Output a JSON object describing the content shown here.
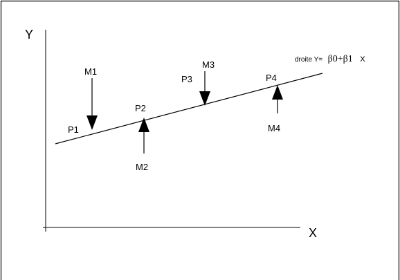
{
  "axes": {
    "y_label": "Y",
    "x_label": "X"
  },
  "line_label": {
    "prefix": "droite Y=",
    "formula": "β0+β1",
    "suffix": "X"
  },
  "points": [
    "P1",
    "P2",
    "P3",
    "P4"
  ],
  "measurements": [
    "M1",
    "M2",
    "M3",
    "M4"
  ],
  "colors": {
    "ink": "#000000",
    "background": "#ffffff"
  }
}
